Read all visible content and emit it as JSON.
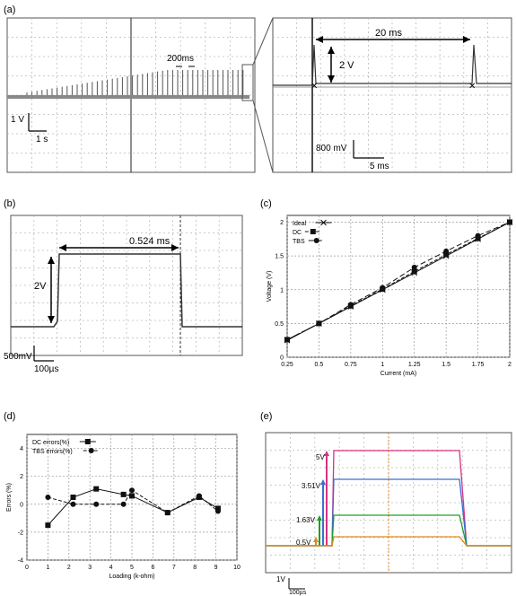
{
  "panel_labels": [
    "(a)",
    "(b)",
    "(c)",
    "(d)",
    "(e)"
  ],
  "panel_a": {
    "interval_label": "200ms",
    "scale_v": "1 V",
    "scale_t": "1 s",
    "zoom": {
      "period_label": "20 ms",
      "amp_label": "2 V",
      "scale_v": "800 mV",
      "scale_t": "5 ms"
    }
  },
  "panel_b": {
    "width_label": "0.524 ms",
    "amp_label": "2V",
    "scale_v": "500mV",
    "scale_t": "100µs"
  },
  "panel_e": {
    "level_labels": [
      "5V",
      "3.51V",
      "1.63V",
      "0.5V"
    ],
    "scale_v": "1V",
    "scale_t": "100µs",
    "colors": [
      "#d63384",
      "#3a6fd0",
      "#20a020",
      "#e08a20"
    ]
  },
  "chart_data": [
    {
      "type": "line",
      "panel": "(c)",
      "xlabel": "Current (mA)",
      "ylabel": "Voltage (V)",
      "x_ticks": [
        "0.25",
        "0.5",
        "0.75",
        "1",
        "1.25",
        "1.5",
        "1.75",
        "2"
      ],
      "y_ticks": [
        "0",
        "0.5",
        "1",
        "1.5",
        "2"
      ],
      "xlim": [
        0.25,
        2
      ],
      "ylim": [
        0,
        2.1
      ],
      "grid": true,
      "legend_position": "top-left",
      "x": [
        0.25,
        0.5,
        0.75,
        1,
        1.25,
        1.5,
        1.75,
        2
      ],
      "series": [
        {
          "name": "Ideal",
          "values": [
            0.25,
            0.5,
            0.75,
            1,
            1.25,
            1.5,
            1.75,
            2
          ],
          "marker": "x"
        },
        {
          "name": "DC",
          "values": [
            0.26,
            0.5,
            0.76,
            1.01,
            1.27,
            1.52,
            1.76,
            2.0
          ],
          "marker": "square"
        },
        {
          "name": "TBS",
          "values": [
            0.26,
            0.5,
            0.78,
            1.03,
            1.33,
            1.57,
            1.8,
            2.0
          ],
          "marker": "circle"
        }
      ]
    },
    {
      "type": "scatter",
      "panel": "(d)",
      "xlabel": "Loading (k-ohm)",
      "ylabel": "Errors (%)",
      "x_ticks": [
        "0",
        "1",
        "2",
        "3",
        "4",
        "5",
        "6",
        "7",
        "8",
        "9",
        "10"
      ],
      "y_ticks": [
        "-4",
        "-2",
        "0",
        "2",
        "4"
      ],
      "xlim": [
        0,
        10
      ],
      "ylim": [
        -4,
        5
      ],
      "grid": true,
      "legend_position": "top-left",
      "series": [
        {
          "name": "DC errors(%)",
          "marker": "square",
          "x": [
            1,
            2.2,
            3.3,
            4.6,
            5,
            6.7,
            8.2,
            9.1
          ],
          "values": [
            -1.5,
            0.5,
            1.1,
            0.7,
            0.6,
            -0.6,
            0.5,
            -0.3
          ]
        },
        {
          "name": "TBS errors(%)",
          "marker": "circle",
          "x": [
            1,
            2.2,
            3.3,
            4.6,
            5,
            6.7,
            8.2,
            9.1
          ],
          "values": [
            0.5,
            0,
            0,
            0,
            1,
            -0.6,
            0.6,
            -0.5
          ]
        }
      ]
    }
  ]
}
